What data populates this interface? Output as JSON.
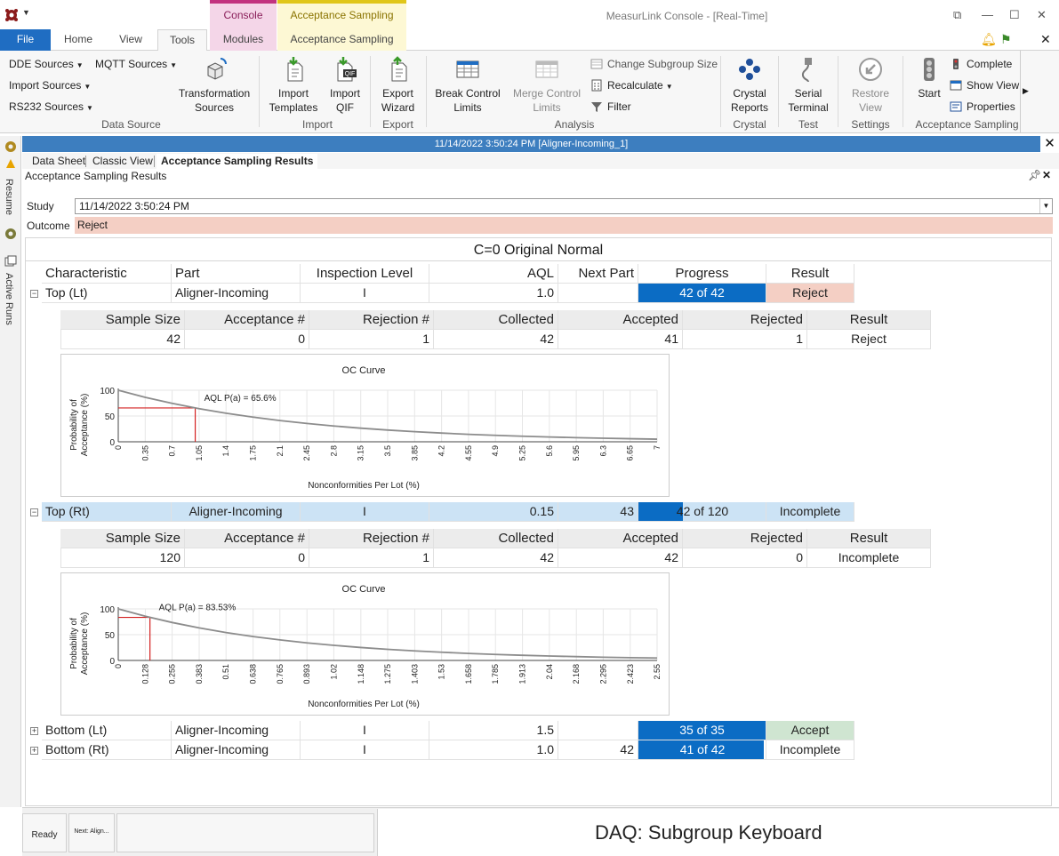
{
  "window": {
    "title": "MeasurLink Console - [Real-Time]",
    "context_tabs": [
      "Console",
      "Acceptance Sampling"
    ]
  },
  "ribbon_tabs": [
    "File",
    "Home",
    "View",
    "Tools",
    "Modules",
    "Acceptance Sampling"
  ],
  "ribbon": {
    "data_source": {
      "dde_sources": "DDE Sources",
      "mqtt_sources": "MQTT Sources",
      "import_sources": "Import Sources",
      "rs232_sources": "RS232 Sources",
      "transformation_sources": [
        "Transformation",
        "Sources"
      ],
      "group": "Data Source"
    },
    "import": {
      "import_templates": [
        "Import",
        "Templates"
      ],
      "import_qif": [
        "Import",
        "QIF"
      ],
      "group": "Import"
    },
    "export": {
      "export_wizard": [
        "Export",
        "Wizard"
      ],
      "group": "Export"
    },
    "analysis": {
      "break_control_limits": [
        "Break Control",
        "Limits"
      ],
      "merge_control_limits": [
        "Merge Control",
        "Limits"
      ],
      "change_subgroup_size": "Change Subgroup Size",
      "recalculate": "Recalculate",
      "filter": "Filter",
      "group": "Analysis"
    },
    "crystal": {
      "crystal_reports": [
        "Crystal",
        "Reports"
      ],
      "group": "Crystal"
    },
    "test": {
      "serial_terminal": [
        "Serial",
        "Terminal"
      ],
      "group": "Test"
    },
    "settings": {
      "restore_view": [
        "Restore",
        "View"
      ],
      "group": "Settings"
    },
    "acceptance_sampling": {
      "start": "Start",
      "complete": "Complete",
      "show_view": "Show View",
      "properties": "Properties",
      "group": "Acceptance Sampling"
    }
  },
  "left_rail": {
    "resume": "Resume",
    "active_runs": "Active Runs"
  },
  "document": {
    "title": "11/14/2022 3:50:24 PM [Aligner-Incoming_1]",
    "subtabs": [
      "Data Sheet",
      "Classic View",
      "Acceptance Sampling Results"
    ],
    "panel_title": "Acceptance Sampling Results",
    "study_label": "Study",
    "study_value": "11/14/2022 3:50:24 PM",
    "outcome_label": "Outcome",
    "outcome_value": "Reject",
    "plan_title": "C=0 Original Normal"
  },
  "main_table": {
    "headers": [
      "Characteristic",
      "Part",
      "Inspection Level",
      "AQL",
      "Next Part",
      "Progress",
      "Result"
    ],
    "rows": [
      {
        "characteristic": "Top (Lt)",
        "part": "Aligner-Incoming",
        "level": "I",
        "aql": "1.0",
        "next_part": "",
        "progress": "42 of 42",
        "progress_fraction": 1.0,
        "result": "Reject",
        "expanded": true
      },
      {
        "characteristic": "Top (Rt)",
        "part": "Aligner-Incoming",
        "level": "I",
        "aql": "0.15",
        "next_part": "43",
        "progress": "42 of 120",
        "progress_fraction": 0.35,
        "result": "Incomplete",
        "expanded": true
      },
      {
        "characteristic": "Bottom (Lt)",
        "part": "Aligner-Incoming",
        "level": "I",
        "aql": "1.5",
        "next_part": "",
        "progress": "35 of 35",
        "progress_fraction": 1.0,
        "result": "Accept",
        "expanded": false
      },
      {
        "characteristic": "Bottom (Rt)",
        "part": "Aligner-Incoming",
        "level": "I",
        "aql": "1.0",
        "next_part": "42",
        "progress": "41 of 42",
        "progress_fraction": 0.976,
        "result": "Incomplete",
        "expanded": false
      }
    ]
  },
  "detail_headers": [
    "Sample Size",
    "Acceptance #",
    "Rejection #",
    "Collected",
    "Accepted",
    "Rejected",
    "Result"
  ],
  "details": [
    {
      "sample_size": "42",
      "acceptance": "0",
      "rejection": "1",
      "collected": "42",
      "accepted": "41",
      "rejected": "1",
      "result": "Reject"
    },
    {
      "sample_size": "120",
      "acceptance": "0",
      "rejection": "1",
      "collected": "42",
      "accepted": "42",
      "rejected": "0",
      "result": "Incomplete"
    }
  ],
  "chart_data": [
    {
      "type": "line",
      "title": "OC Curve",
      "xlabel": "Nonconformities Per Lot (%)",
      "ylabel": "Probability of Acceptance (%)",
      "annotation": "AQL P(a) = 65.6%",
      "aql_x": 1.0,
      "aql_y": 65.6,
      "x_ticks": [
        "0",
        "0.35",
        "0.7",
        "1.05",
        "1.4",
        "1.75",
        "2.1",
        "2.45",
        "2.8",
        "3.15",
        "3.5",
        "3.85",
        "4.2",
        "4.55",
        "4.9",
        "5.25",
        "5.6",
        "5.95",
        "6.3",
        "6.65",
        "7"
      ],
      "y_ticks": [
        "0",
        "50",
        "100"
      ],
      "xlim": [
        0,
        7
      ],
      "ylim": [
        0,
        100
      ],
      "grid": true,
      "x": [
        0,
        0.35,
        0.7,
        1.05,
        1.4,
        1.75,
        2.1,
        2.45,
        2.8,
        3.15,
        3.5,
        3.85,
        4.2,
        4.55,
        4.9,
        5.25,
        5.6,
        5.95,
        6.3,
        6.65,
        7
      ],
      "series": [
        {
          "values": [
            100,
            86.3,
            74.5,
            64.2,
            55.4,
            47.8,
            41.2,
            35.5,
            30.6,
            26.4,
            22.7,
            19.6,
            16.9,
            14.5,
            12.5,
            10.8,
            9.3,
            8.0,
            6.9,
            5.9,
            5.1
          ]
        }
      ]
    },
    {
      "type": "line",
      "title": "OC Curve",
      "xlabel": "Nonconformities Per Lot (%)",
      "ylabel": "Probability of Acceptance (%)",
      "annotation": "AQL P(a) = 83.53%",
      "aql_x": 0.15,
      "aql_y": 83.53,
      "x_ticks": [
        "0",
        "0.128",
        "0.255",
        "0.383",
        "0.51",
        "0.638",
        "0.765",
        "0.893",
        "1.02",
        "1.148",
        "1.275",
        "1.403",
        "1.53",
        "1.658",
        "1.785",
        "1.913",
        "2.04",
        "2.168",
        "2.295",
        "2.423",
        "2.55"
      ],
      "y_ticks": [
        "0",
        "50",
        "100"
      ],
      "xlim": [
        0,
        2.55
      ],
      "ylim": [
        0,
        100
      ],
      "grid": true,
      "x": [
        0,
        0.128,
        0.255,
        0.383,
        0.51,
        0.638,
        0.765,
        0.893,
        1.02,
        1.148,
        1.275,
        1.403,
        1.53,
        1.658,
        1.785,
        1.913,
        2.04,
        2.168,
        2.295,
        2.423,
        2.55
      ],
      "series": [
        {
          "values": [
            100,
            85.8,
            73.6,
            63.1,
            54.1,
            46.4,
            39.8,
            34.1,
            29.3,
            25.1,
            21.6,
            18.5,
            15.9,
            13.6,
            11.7,
            10.0,
            8.6,
            7.4,
            6.3,
            5.4,
            4.7
          ]
        }
      ]
    }
  ],
  "statusbar": {
    "ready": "Ready",
    "next": "Next: Align...",
    "daq": "DAQ: Subgroup Keyboard"
  }
}
